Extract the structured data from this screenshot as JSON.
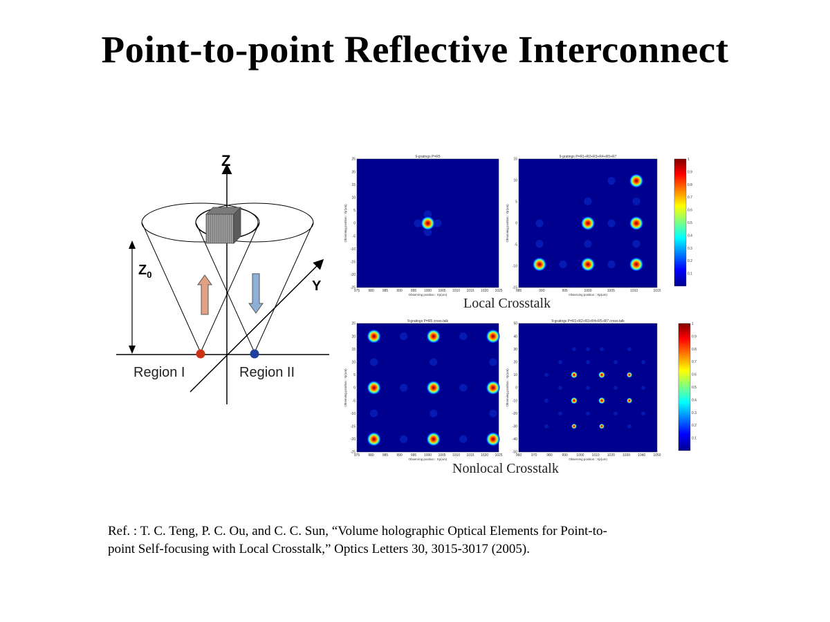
{
  "title": "Point-to-point Reflective Interconnect",
  "diagram": {
    "z_axis_label": "Z",
    "y_axis_label": "Y",
    "z0_label": "Z",
    "z0_subscript": "0",
    "region1_label": "Region I",
    "region2_label": "Region II",
    "colors": {
      "region1": "#cc3311",
      "region2": "#1f3f9f",
      "up_arrow": "#e0a184",
      "down_arrow": "#8fb0d6"
    }
  },
  "captions": {
    "local": "Local Crosstalk",
    "nonlocal": "Nonlocal Crosstalk"
  },
  "plots": [
    {
      "title": "9-gratings P=R5",
      "xlabel": "Observing position : Xp(um)",
      "ylabel": "Observing position : Yp(um)",
      "xticks": [
        "975",
        "980",
        "985",
        "990",
        "995",
        "1000",
        "1005",
        "1010",
        "1015",
        "1020",
        "1025"
      ],
      "yticks": [
        "25",
        "20",
        "15",
        "10",
        "5",
        "0",
        "-5",
        "-10",
        "-15",
        "-20",
        "-25"
      ]
    },
    {
      "title": "9-gratings P=R1+R2+R3+R4+R5+R7",
      "xlabel": "Observing position : Xp(um)",
      "ylabel": "Observing position : Yp(um)",
      "xticks": [
        "985",
        "990",
        "995",
        "1000",
        "1005",
        "1010",
        "1015"
      ],
      "yticks": [
        "15",
        "10",
        "5",
        "0",
        "-5",
        "-10",
        "-15"
      ],
      "colorbar_ticks": [
        "1",
        "0.9",
        "0.8",
        "0.7",
        "0.6",
        "0.5",
        "0.4",
        "0.3",
        "0.2",
        "0.1"
      ]
    },
    {
      "title": "9-gratings P=R5 cross-talk",
      "xlabel": "Observing position : Xp(um)",
      "ylabel": "Observing position : Yp(um)",
      "xticks": [
        "975",
        "980",
        "985",
        "990",
        "995",
        "1000",
        "1005",
        "1010",
        "1015",
        "1020",
        "1025"
      ],
      "yticks": [
        "25",
        "20",
        "15",
        "10",
        "5",
        "0",
        "-5",
        "-10",
        "-15",
        "-20",
        "-25"
      ]
    },
    {
      "title": "9-gratings P=R1+R2+R3+R4+R5+R7 cross-talk",
      "xlabel": "Observing position : Xp(um)",
      "ylabel": "Observing position : Yp(um)",
      "xticks": [
        "960",
        "970",
        "980",
        "990",
        "1000",
        "1010",
        "1020",
        "1030",
        "1040",
        "1050"
      ],
      "yticks": [
        "50",
        "40",
        "30",
        "20",
        "10",
        "0",
        "-10",
        "-20",
        "-30",
        "-40",
        "-50"
      ],
      "colorbar_ticks": [
        "1",
        "0.9",
        "0.8",
        "0.7",
        "0.6",
        "0.5",
        "0.4",
        "0.3",
        "0.2",
        "0.1"
      ]
    }
  ],
  "reference": {
    "line1": "Ref. : T. C. Teng, P. C. Ou, and C. C. Sun, “Volume holographic Optical Elements for Point-to-",
    "line2": "point Self-focusing with Local Crosstalk,” Optics Letters 30, 3015-3017 (2005)."
  }
}
